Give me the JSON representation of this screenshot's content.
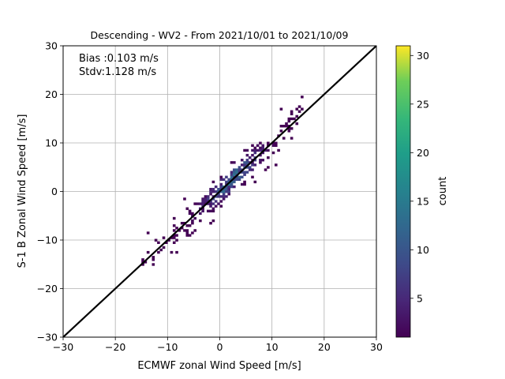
{
  "chart_data": {
    "type": "heatmap",
    "title": "Descending - WV2 - From 2021/10/01 to 2021/10/09",
    "xlabel": "ECMWF zonal Wind Speed [m/s]",
    "ylabel": "S-1 B Zonal Wind Speed [m/s]",
    "xlim": [
      -30,
      30
    ],
    "ylim": [
      -30,
      30
    ],
    "xticks": [
      "−30",
      "−20",
      "−10",
      "0",
      "10",
      "20",
      "30"
    ],
    "yticks": [
      "−30",
      "−20",
      "−10",
      "0",
      "10",
      "20",
      "30"
    ],
    "grid": true,
    "annotations": [
      "Bias :0.103 m/s",
      "Stdv:1.128 m/s"
    ],
    "reference_line": {
      "label": "1:1 line",
      "from": [
        -30,
        -30
      ],
      "to": [
        30,
        30
      ],
      "color": "#000000"
    },
    "colorbar": {
      "label": "count",
      "colormap": "viridis",
      "range": [
        1,
        31
      ],
      "ticks": [
        "5",
        "10",
        "15",
        "20",
        "25",
        "30"
      ]
    },
    "density_model": {
      "description": "2D histogram of matched wind speeds clustered along the 1:1 line",
      "x_range_of_bins": [
        -16,
        19
      ],
      "bin_size": 0.5,
      "scatter_std": 1.128,
      "bias": 0.103,
      "peak_count": 31
    }
  }
}
